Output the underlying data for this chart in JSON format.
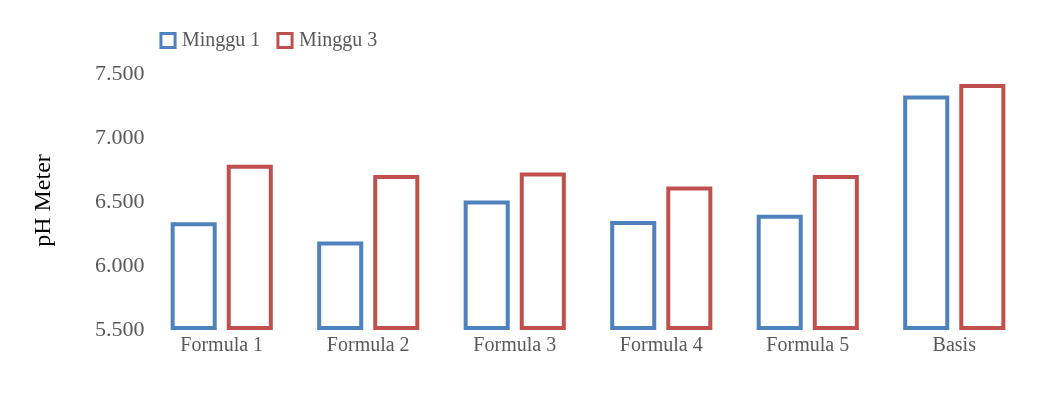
{
  "chart_data": {
    "type": "bar",
    "ylabel": "pH Meter",
    "categories": [
      "Formula 1",
      "Formula 2",
      "Formula 3",
      "Formula 4",
      "Formula 5",
      "Basis"
    ],
    "series": [
      {
        "name": "Minggu 1",
        "color": "#4f81bd",
        "values": [
          6.31,
          6.16,
          6.48,
          6.32,
          6.37,
          7.3
        ]
      },
      {
        "name": "Minggu 3",
        "color": "#c0504d",
        "values": [
          6.76,
          6.68,
          6.7,
          6.59,
          6.68,
          7.39
        ]
      }
    ],
    "ylim": [
      5.5,
      7.5
    ],
    "yticks": [
      {
        "value": 5.5,
        "label": "5.500"
      },
      {
        "value": 6.0,
        "label": "6.000"
      },
      {
        "value": 6.5,
        "label": "6.500"
      },
      {
        "value": 7.0,
        "label": "7.000"
      },
      {
        "value": 7.5,
        "label": "7.500"
      }
    ],
    "grid": false,
    "legend": "top"
  }
}
